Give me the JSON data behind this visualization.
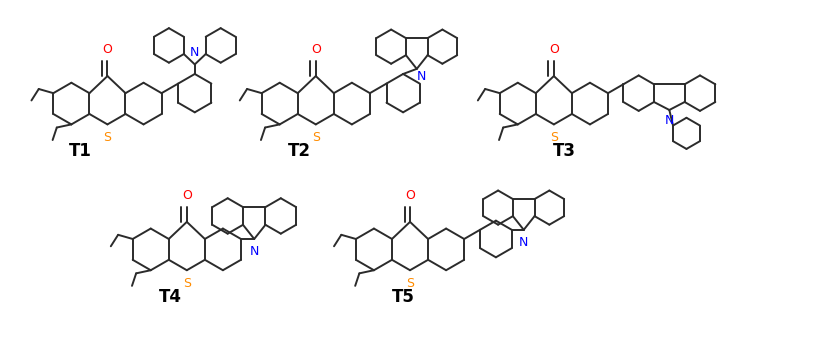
{
  "background_color": "#ffffff",
  "label_fontsize": 12,
  "label_bold": true,
  "labels": [
    "T1",
    "T2",
    "T3",
    "T4",
    "T5"
  ],
  "O_color": "#ff0000",
  "S_color": "#ff8c00",
  "N_color": "#0000ff",
  "bond_color": "#2b2b2b",
  "bond_lw": 1.4
}
